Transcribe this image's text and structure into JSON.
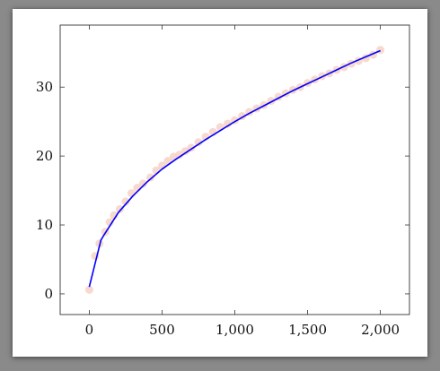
{
  "chart_data": {
    "type": "line",
    "title": "",
    "xlabel": "",
    "ylabel": "",
    "xlim": [
      -200,
      2200
    ],
    "ylim": [
      -3,
      39
    ],
    "x_ticks": [
      0,
      500,
      1000,
      1500,
      2000
    ],
    "x_tick_labels": [
      "0",
      "500",
      "1,000",
      "1,500",
      "2,000"
    ],
    "y_ticks": [
      0,
      10,
      20,
      30
    ],
    "y_tick_labels": [
      "0",
      "10",
      "20",
      "30"
    ],
    "grid": false,
    "legend": "none",
    "series": [
      {
        "kind": "line",
        "color": "#0000ff",
        "x": [
          0,
          80,
          100,
          200,
          300,
          400,
          500,
          600,
          700,
          800,
          900,
          1000,
          1100,
          1200,
          1300,
          1400,
          1500,
          1600,
          1700,
          1800,
          1900,
          2000
        ],
        "y": [
          1.0,
          7.8,
          8.5,
          11.8,
          14.2,
          16.3,
          18.1,
          19.6,
          21.0,
          22.4,
          23.7,
          25.0,
          26.2,
          27.3,
          28.4,
          29.5,
          30.5,
          31.5,
          32.5,
          33.5,
          34.4,
          35.3
        ]
      },
      {
        "kind": "scatter",
        "color": "#f6d2c6",
        "x": [
          0,
          40,
          70,
          110,
          140,
          170,
          210,
          250,
          290,
          330,
          370,
          420,
          460,
          500,
          540,
          580,
          620,
          660,
          700,
          750,
          800,
          850,
          900,
          950,
          1000,
          1050,
          1100,
          1150,
          1200,
          1250,
          1300,
          1350,
          1400,
          1450,
          1500,
          1550,
          1600,
          1650,
          1700,
          1750,
          1800,
          1850,
          1900,
          1950,
          2000
        ],
        "y": [
          0.6,
          5.5,
          7.3,
          9.0,
          10.4,
          11.4,
          12.3,
          13.4,
          14.6,
          15.4,
          16.0,
          16.9,
          17.9,
          18.6,
          19.3,
          19.9,
          20.2,
          20.7,
          21.2,
          22.0,
          22.8,
          23.5,
          24.2,
          24.7,
          25.2,
          25.8,
          26.4,
          26.9,
          27.4,
          28.0,
          28.6,
          29.1,
          29.6,
          30.0,
          30.6,
          31.1,
          31.6,
          32.0,
          32.5,
          32.9,
          33.4,
          33.8,
          34.2,
          34.7,
          35.4
        ]
      }
    ]
  }
}
